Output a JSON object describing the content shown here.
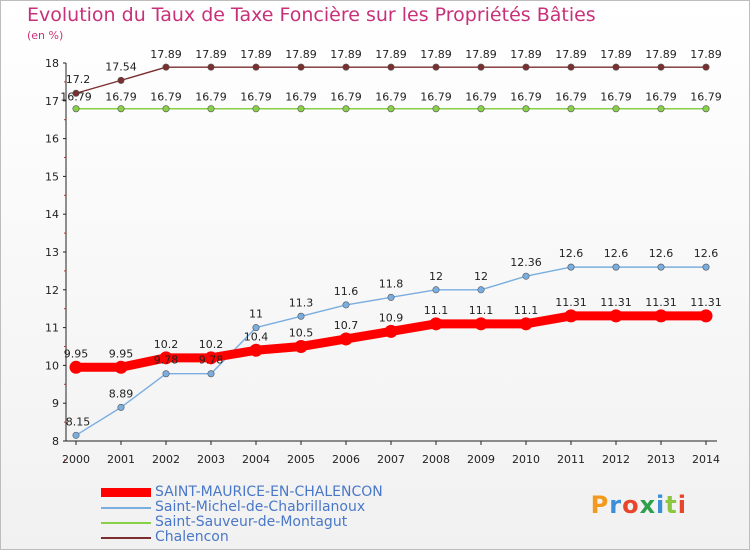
{
  "chart_data": {
    "type": "line",
    "title": "Evolution du Taux de Taxe Foncière sur les Propriétés Bâties",
    "unit_label": "(en %)",
    "x": [
      "2000",
      "2001",
      "2002",
      "2003",
      "2004",
      "2005",
      "2006",
      "2007",
      "2008",
      "2009",
      "2010",
      "2011",
      "2012",
      "2013",
      "2014"
    ],
    "ylim": [
      8,
      18
    ],
    "yticks": [
      "8",
      "9",
      "10",
      "11",
      "12",
      "13",
      "14",
      "15",
      "16",
      "17",
      "18"
    ],
    "grid": false,
    "legend_position": "bottom-left",
    "series": [
      {
        "name": "SAINT-MAURICE-EN-CHALENCON",
        "color": "#ff0000",
        "values": [
          9.95,
          9.95,
          10.2,
          10.2,
          10.4,
          10.5,
          10.7,
          10.9,
          11.1,
          11.1,
          11.1,
          11.31,
          11.31,
          11.31,
          11.31
        ],
        "labels": [
          "9.95",
          "9.95",
          "10.2",
          "10.2",
          "10.4",
          "10.5",
          "10.7",
          "10.9",
          "11.1",
          "11.1",
          "11.1",
          "11.31",
          "11.31",
          "11.31",
          "11.31"
        ]
      },
      {
        "name": "Saint-Michel-de-Chabrillanoux",
        "color": "#7aaee0",
        "values": [
          8.15,
          8.89,
          9.78,
          9.78,
          11,
          11.3,
          11.6,
          11.8,
          12,
          12,
          12.36,
          12.6,
          12.6,
          12.6,
          12.6
        ],
        "labels": [
          "8.15",
          "8.89",
          "9.78",
          "9.78",
          "11",
          "11.3",
          "11.6",
          "11.8",
          "12",
          "12",
          "12.36",
          "12.6",
          "12.6",
          "12.6",
          "12.6"
        ]
      },
      {
        "name": "Saint-Sauveur-de-Montagut",
        "color": "#88d048",
        "values": [
          16.79,
          16.79,
          16.79,
          16.79,
          16.79,
          16.79,
          16.79,
          16.79,
          16.79,
          16.79,
          16.79,
          16.79,
          16.79,
          16.79,
          16.79
        ],
        "labels": [
          "16.79",
          "16.79",
          "16.79",
          "16.79",
          "16.79",
          "16.79",
          "16.79",
          "16.79",
          "16.79",
          "16.79",
          "16.79",
          "16.79",
          "16.79",
          "16.79",
          "16.79"
        ]
      },
      {
        "name": "Chalencon",
        "color": "#7a2e2e",
        "values": [
          17.2,
          17.54,
          17.89,
          17.89,
          17.89,
          17.89,
          17.89,
          17.89,
          17.89,
          17.89,
          17.89,
          17.89,
          17.89,
          17.89,
          17.89
        ],
        "labels": [
          "17.2",
          "17.54",
          "17.89",
          "17.89",
          "17.89",
          "17.89",
          "17.89",
          "17.89",
          "17.89",
          "17.89",
          "17.89",
          "17.89",
          "17.89",
          "17.89",
          "17.89"
        ]
      }
    ]
  },
  "logo": {
    "text": "Proxiti"
  }
}
